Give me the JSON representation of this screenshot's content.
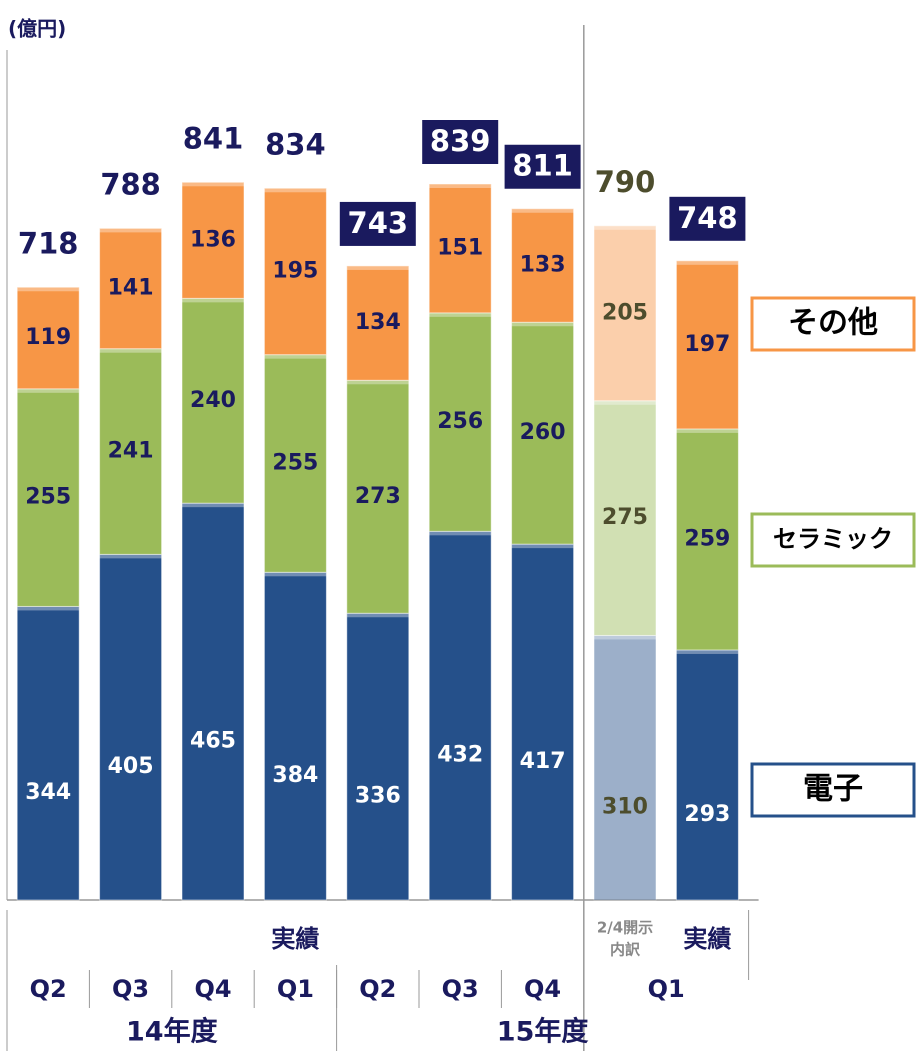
{
  "chart_data": {
    "type": "stacked_bar",
    "y_label": "(億円)",
    "categories": [
      "Q2",
      "Q3",
      "Q4",
      "Q1",
      "Q2",
      "Q3",
      "Q4",
      "Q1",
      null
    ],
    "sub_labels": [
      {
        "label": [
          "実績"
        ],
        "bars": 7
      },
      {
        "label": [
          "2/4開示",
          "内訳"
        ],
        "bars": 1
      },
      {
        "label": [
          "実績"
        ],
        "bars": 1
      }
    ],
    "years": [
      {
        "label": "14年度",
        "bars": 4
      },
      {
        "label": "15年度",
        "bars": 5
      }
    ],
    "series": [
      {
        "name": "電子",
        "color": "#25508a",
        "values": [
          344,
          405,
          465,
          384,
          336,
          432,
          417,
          310,
          293
        ]
      },
      {
        "name": "セラミック",
        "color": "#9bbb59",
        "values": [
          255,
          241,
          240,
          255,
          273,
          256,
          260,
          275,
          259
        ]
      },
      {
        "name": "その他",
        "color": "#f79646",
        "values": [
          119,
          141,
          136,
          195,
          134,
          151,
          133,
          205,
          197
        ]
      }
    ],
    "totals": [
      718,
      788,
      841,
      834,
      743,
      839,
      811,
      790,
      748
    ],
    "boxed_totals": [
      4,
      5,
      6,
      8
    ],
    "faded_bars": [
      7
    ],
    "ylim": [
      0,
      1030
    ]
  }
}
